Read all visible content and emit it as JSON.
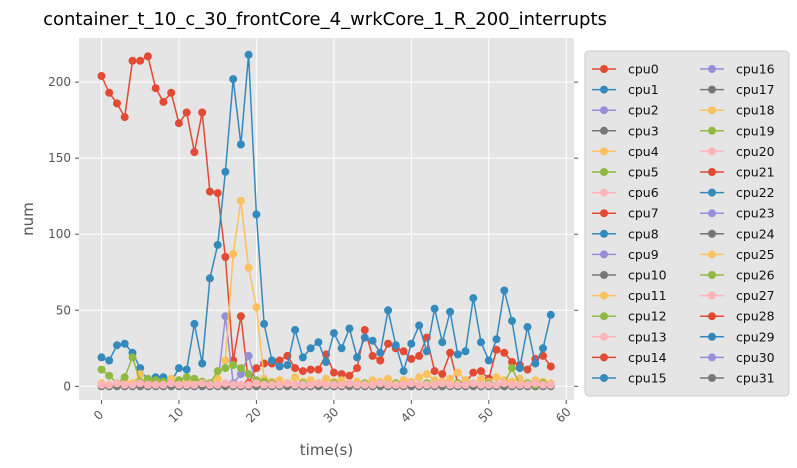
{
  "chart_data": {
    "type": "line",
    "title": "container_t_10_c_30_frontCore_4_wrkCore_1_R_200_interrupts",
    "xlabel": "time(s)",
    "ylabel": "num",
    "xlim": [
      -2.9,
      61
    ],
    "ylim": [
      -9,
      229
    ],
    "xticks": [
      0,
      10,
      20,
      30,
      40,
      50,
      60
    ],
    "yticks": [
      0,
      50,
      100,
      150,
      200
    ],
    "grid": true,
    "legend_position": "right, outside plot",
    "series": [
      {
        "name": "cpu0",
        "color": "#E24A33",
        "x": [
          0,
          1,
          2,
          3,
          4,
          5,
          6,
          7,
          8,
          9,
          10,
          11,
          12,
          13,
          14,
          15,
          16,
          17,
          18,
          19,
          20,
          21,
          22,
          23,
          24,
          25,
          26,
          27,
          28,
          29,
          30,
          31,
          32,
          33,
          34,
          35,
          36,
          37,
          38,
          39,
          40,
          41,
          42,
          43,
          44,
          45,
          46,
          47,
          48,
          49,
          50,
          51,
          52,
          53,
          54,
          55,
          56,
          57,
          58
        ],
        "y": [
          204,
          193,
          186,
          177,
          214,
          214,
          217,
          196,
          187,
          193,
          173,
          180,
          154,
          180,
          128,
          127,
          85,
          17,
          46,
          2,
          12,
          15,
          15,
          17,
          20,
          12,
          10,
          11,
          11,
          21,
          9,
          8,
          7,
          12,
          37,
          20,
          17,
          28,
          25,
          23,
          18,
          20,
          32,
          10,
          8,
          22,
          2,
          2,
          9,
          10,
          5,
          24,
          22,
          16,
          14,
          11,
          18,
          20,
          13
        ]
      },
      {
        "name": "cpu1",
        "color": "#348ABD",
        "x": [
          0,
          1,
          2,
          3,
          4,
          5,
          6,
          7,
          8,
          9,
          10,
          11,
          12,
          13,
          14,
          15,
          16,
          17,
          18,
          19,
          20,
          21,
          22,
          23,
          24,
          25,
          26,
          27,
          28,
          29,
          30,
          31,
          32,
          33,
          34,
          35,
          36,
          37,
          38,
          39,
          40,
          41,
          42,
          43,
          44,
          45,
          46,
          47,
          48,
          49,
          50,
          51,
          52,
          53,
          54,
          55,
          56,
          57,
          58
        ],
        "y": [
          19,
          17,
          27,
          28,
          22,
          12,
          3,
          6,
          6,
          3,
          12,
          11,
          41,
          15,
          71,
          93,
          141,
          202,
          159,
          218,
          113,
          41,
          17,
          13,
          14,
          37,
          19,
          25,
          29,
          16,
          35,
          25,
          38,
          19,
          32,
          30,
          22,
          50,
          27,
          10,
          28,
          40,
          23,
          51,
          29,
          49,
          21,
          23,
          58,
          29,
          17,
          31,
          63,
          43,
          12,
          39,
          15,
          25,
          47
        ]
      },
      {
        "name": "cpu2",
        "color": "#988ED5",
        "x": [
          0,
          1,
          2,
          3,
          4,
          5,
          6,
          7,
          8,
          9,
          10,
          11,
          12,
          13,
          14,
          15,
          16,
          17,
          18,
          19,
          20,
          21,
          22,
          23,
          24,
          25,
          26,
          27,
          28,
          29,
          30,
          31,
          32,
          33,
          34,
          35,
          36,
          37,
          38,
          39,
          40,
          41,
          42,
          43,
          44,
          45,
          46,
          47,
          48,
          49,
          50,
          51,
          52,
          53,
          54,
          55,
          56,
          57,
          58
        ],
        "y": [
          1,
          0,
          1,
          0,
          1,
          0,
          0,
          1,
          0,
          0,
          1,
          0,
          0,
          1,
          0,
          1,
          46,
          2,
          8,
          20,
          2,
          1,
          0,
          1,
          0,
          1,
          0,
          0,
          1,
          0,
          0,
          1,
          0,
          1,
          0,
          0,
          1,
          0,
          0,
          1,
          0,
          0,
          1,
          0,
          0,
          1,
          0,
          0,
          1,
          0,
          0,
          1,
          0,
          0,
          1,
          0,
          0,
          1,
          0
        ]
      },
      {
        "name": "cpu3",
        "color": "#777777",
        "x": [
          0,
          1,
          2,
          3,
          4,
          5,
          6,
          7,
          8,
          9,
          10,
          11,
          12,
          13,
          14,
          15,
          16,
          17,
          18,
          19,
          20,
          21,
          22,
          23,
          24,
          25,
          26,
          27,
          28,
          29,
          30,
          31,
          32,
          33,
          34,
          35,
          36,
          37,
          38,
          39,
          40,
          41,
          42,
          43,
          44,
          45,
          46,
          47,
          48,
          49,
          50,
          51,
          52,
          53,
          54,
          55,
          56,
          57,
          58
        ],
        "y": [
          0,
          0,
          0,
          0,
          0,
          0,
          0,
          0,
          0,
          0,
          0,
          0,
          0,
          0,
          0,
          0,
          0,
          0,
          0,
          0,
          0,
          0,
          0,
          0,
          0,
          0,
          0,
          0,
          0,
          0,
          0,
          0,
          0,
          0,
          0,
          0,
          0,
          0,
          0,
          0,
          0,
          0,
          0,
          0,
          0,
          0,
          0,
          0,
          0,
          0,
          0,
          0,
          0,
          0,
          0,
          0,
          0,
          0,
          0
        ]
      },
      {
        "name": "cpu4",
        "color": "#FBC15E",
        "x": [
          0,
          1,
          2,
          3,
          4,
          5,
          6,
          7,
          8,
          9,
          10,
          11,
          12,
          13,
          14,
          15,
          16,
          17,
          18,
          19,
          20,
          21,
          22,
          23,
          24,
          25,
          26,
          27,
          28,
          29,
          30,
          31,
          32,
          33,
          34,
          35,
          36,
          37,
          38,
          39,
          40,
          41,
          42,
          43,
          44,
          45,
          46,
          47,
          48,
          49,
          50,
          51,
          52,
          53,
          54,
          55,
          56,
          57,
          58
        ],
        "y": [
          2,
          1,
          2,
          3,
          2,
          8,
          4,
          3,
          2,
          5,
          3,
          2,
          4,
          3,
          2,
          5,
          17,
          87,
          122,
          78,
          52,
          5,
          3,
          4,
          2,
          6,
          3,
          4,
          2,
          5,
          3,
          4,
          2,
          3,
          2,
          4,
          3,
          5,
          2,
          4,
          3,
          6,
          8,
          4,
          3,
          5,
          9,
          4,
          2,
          5,
          3,
          6,
          4,
          3,
          5,
          2,
          4,
          3,
          2
        ]
      },
      {
        "name": "cpu5",
        "color": "#8EBA42",
        "x": [
          0,
          1,
          2,
          3,
          4,
          5,
          6,
          7,
          8,
          9,
          10,
          11,
          12,
          13,
          14,
          15,
          16,
          17,
          18,
          19,
          20,
          21,
          22,
          23,
          24,
          25,
          26,
          27,
          28,
          29,
          30,
          31,
          32,
          33,
          34,
          35,
          36,
          37,
          38,
          39,
          40,
          41,
          42,
          43,
          44,
          45,
          46,
          47,
          48,
          49,
          50,
          51,
          52,
          53,
          54,
          55,
          56,
          57,
          58
        ],
        "y": [
          11,
          7,
          2,
          6,
          19,
          3,
          5,
          4,
          3,
          2,
          4,
          6,
          5,
          3,
          2,
          10,
          12,
          14,
          12,
          8,
          4,
          3,
          2,
          1,
          2,
          1,
          2,
          1,
          2,
          1,
          2,
          1,
          2,
          1,
          2,
          1,
          2,
          1,
          2,
          1,
          2,
          1,
          2,
          1,
          2,
          1,
          2,
          1,
          2,
          1,
          2,
          1,
          2,
          12,
          1,
          2,
          1,
          2,
          1
        ]
      },
      {
        "name": "cpu6",
        "color": "#FFB5B8",
        "x": [
          0,
          1,
          2,
          3,
          4,
          5,
          6,
          7,
          8,
          9,
          10,
          11,
          12,
          13,
          14,
          15,
          16,
          17,
          18,
          19,
          20,
          21,
          22,
          23,
          24,
          25,
          26,
          27,
          28,
          29,
          30,
          31,
          32,
          33,
          34,
          35,
          36,
          37,
          38,
          39,
          40,
          41,
          42,
          43,
          44,
          45,
          46,
          47,
          48,
          49,
          50,
          51,
          52,
          53,
          54,
          55,
          56,
          57,
          58
        ],
        "y": [
          1,
          1,
          2,
          1,
          1,
          2,
          1,
          1,
          1,
          2,
          1,
          1,
          1,
          2,
          1,
          1,
          2,
          1,
          1,
          1,
          2,
          1,
          1,
          1,
          2,
          1,
          1,
          1,
          2,
          1,
          1,
          1,
          2,
          1,
          1,
          1,
          2,
          1,
          1,
          1,
          2,
          1,
          1,
          1,
          2,
          1,
          1,
          1,
          2,
          1,
          1,
          1,
          2,
          1,
          1,
          1,
          2,
          1,
          1
        ]
      }
    ],
    "legend": [
      "cpu0",
      "cpu1",
      "cpu2",
      "cpu3",
      "cpu4",
      "cpu5",
      "cpu6",
      "cpu7",
      "cpu8",
      "cpu9",
      "cpu10",
      "cpu11",
      "cpu12",
      "cpu13",
      "cpu14",
      "cpu15",
      "cpu16",
      "cpu17",
      "cpu18",
      "cpu19",
      "cpu20",
      "cpu21",
      "cpu22",
      "cpu23",
      "cpu24",
      "cpu25",
      "cpu26",
      "cpu27",
      "cpu28",
      "cpu29",
      "cpu30",
      "cpu31"
    ],
    "legend_colors": [
      "#E24A33",
      "#348ABD",
      "#988ED5",
      "#777777",
      "#FBC15E",
      "#8EBA42",
      "#FFB5B8",
      "#E24A33",
      "#348ABD",
      "#988ED5",
      "#777777",
      "#FBC15E",
      "#8EBA42",
      "#FFB5B8",
      "#E24A33",
      "#348ABD",
      "#988ED5",
      "#777777",
      "#FBC15E",
      "#8EBA42",
      "#FFB5B8",
      "#E24A33",
      "#348ABD",
      "#988ED5",
      "#777777",
      "#FBC15E",
      "#8EBA42",
      "#FFB5B8",
      "#E24A33",
      "#348ABD",
      "#988ED5",
      "#777777"
    ]
  }
}
